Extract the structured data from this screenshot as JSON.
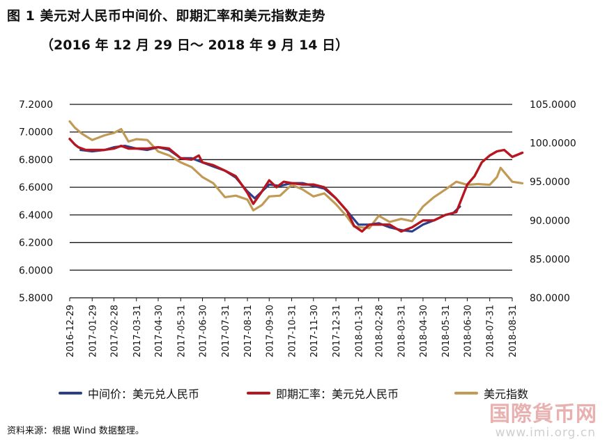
{
  "header": {
    "title": "图 1  美元对人民币中间价、即期汇率和美元指数走势",
    "subtitle": "（2016 年 12 月 29 日～ 2018 年 9 月 14 日）"
  },
  "legend": {
    "items": [
      {
        "label": "中间价：美元兑人民币",
        "color": "#2b3f8c"
      },
      {
        "label": "即期汇率：美元兑人民币",
        "color": "#b5161f"
      },
      {
        "label": "美元指数",
        "color": "#c19a56"
      }
    ]
  },
  "source": "资料来源：根据 Wind 数据整理。",
  "watermark": {
    "logo_text": "国際貨币网",
    "url": "www.imi.org.cn"
  },
  "chart_data": {
    "type": "line",
    "x_ticks": [
      "2016-12-29",
      "2017-01-29",
      "2017-02-28",
      "2017-03-31",
      "2017-04-30",
      "2017-05-31",
      "2017-06-30",
      "2017-07-31",
      "2017-08-31",
      "2017-09-30",
      "2017-10-31",
      "2017-11-30",
      "2017-12-31",
      "2018-01-31",
      "2018-02-28",
      "2018-03-31",
      "2018-04-30",
      "2018-05-31",
      "2018-06-30",
      "2018-07-31",
      "2018-08-31"
    ],
    "left_axis": {
      "min": 5.8,
      "max": 7.2,
      "ticks": [
        "7.2000",
        "7.0000",
        "6.8000",
        "6.6000",
        "6.4000",
        "6.2000",
        "6.0000",
        "5.8000"
      ]
    },
    "right_axis": {
      "min": 80,
      "max": 105,
      "ticks": [
        "105.0000",
        "100.0000",
        "95.0000",
        "90.0000",
        "85.0000",
        "80.0000"
      ]
    },
    "grid": "horizontal",
    "legend_position": "bottom",
    "series": [
      {
        "name": "中间价：美元兑人民币",
        "axis": "left",
        "color": "#2b3f8c",
        "points": [
          [
            "2017-01-13",
            6.87
          ],
          [
            "2017-01-29",
            6.86
          ],
          [
            "2017-02-15",
            6.87
          ],
          [
            "2017-02-28",
            6.89
          ],
          [
            "2017-03-15",
            6.9
          ],
          [
            "2017-03-31",
            6.88
          ],
          [
            "2017-04-15",
            6.87
          ],
          [
            "2017-04-30",
            6.89
          ],
          [
            "2017-05-15",
            6.87
          ],
          [
            "2017-05-31",
            6.81
          ],
          [
            "2017-06-15",
            6.81
          ],
          [
            "2017-06-30",
            6.78
          ],
          [
            "2017-07-15",
            6.75
          ],
          [
            "2017-07-31",
            6.72
          ],
          [
            "2017-08-15",
            6.67
          ],
          [
            "2017-08-31",
            6.57
          ],
          [
            "2017-09-10",
            6.52
          ],
          [
            "2017-09-20",
            6.57
          ],
          [
            "2017-09-30",
            6.62
          ],
          [
            "2017-10-15",
            6.61
          ],
          [
            "2017-10-31",
            6.63
          ],
          [
            "2017-11-15",
            6.63
          ],
          [
            "2017-11-30",
            6.61
          ],
          [
            "2017-12-15",
            6.59
          ],
          [
            "2017-12-31",
            6.52
          ],
          [
            "2018-01-15",
            6.43
          ],
          [
            "2018-01-31",
            6.33
          ],
          [
            "2018-02-15",
            6.33
          ],
          [
            "2018-02-28",
            6.34
          ],
          [
            "2018-03-15",
            6.31
          ],
          [
            "2018-03-31",
            6.29
          ],
          [
            "2018-04-15",
            6.28
          ],
          [
            "2018-04-30",
            6.33
          ],
          [
            "2018-05-15",
            6.36
          ],
          [
            "2018-05-31",
            6.4
          ],
          [
            "2018-06-10",
            6.41
          ],
          [
            "2018-06-20",
            6.46
          ]
        ]
      },
      {
        "name": "即期汇率：美元兑人民币",
        "axis": "left",
        "color": "#b5161f",
        "points": [
          [
            "2016-12-29",
            6.95
          ],
          [
            "2017-01-05",
            6.91
          ],
          [
            "2017-01-10",
            6.89
          ],
          [
            "2017-01-20",
            6.87
          ],
          [
            "2017-01-29",
            6.87
          ],
          [
            "2017-02-15",
            6.87
          ],
          [
            "2017-02-28",
            6.88
          ],
          [
            "2017-03-10",
            6.9
          ],
          [
            "2017-03-20",
            6.88
          ],
          [
            "2017-03-31",
            6.88
          ],
          [
            "2017-04-15",
            6.88
          ],
          [
            "2017-04-30",
            6.89
          ],
          [
            "2017-05-15",
            6.88
          ],
          [
            "2017-05-31",
            6.81
          ],
          [
            "2017-06-15",
            6.8
          ],
          [
            "2017-06-25",
            6.83
          ],
          [
            "2017-06-30",
            6.78
          ],
          [
            "2017-07-15",
            6.76
          ],
          [
            "2017-07-31",
            6.72
          ],
          [
            "2017-08-15",
            6.68
          ],
          [
            "2017-08-31",
            6.56
          ],
          [
            "2017-09-08",
            6.48
          ],
          [
            "2017-09-20",
            6.57
          ],
          [
            "2017-09-30",
            6.65
          ],
          [
            "2017-10-10",
            6.6
          ],
          [
            "2017-10-20",
            6.64
          ],
          [
            "2017-10-31",
            6.63
          ],
          [
            "2017-11-15",
            6.62
          ],
          [
            "2017-11-30",
            6.62
          ],
          [
            "2017-12-15",
            6.6
          ],
          [
            "2017-12-31",
            6.52
          ],
          [
            "2018-01-15",
            6.43
          ],
          [
            "2018-01-25",
            6.32
          ],
          [
            "2018-02-05",
            6.28
          ],
          [
            "2018-02-15",
            6.33
          ],
          [
            "2018-02-28",
            6.33
          ],
          [
            "2018-03-15",
            6.33
          ],
          [
            "2018-03-31",
            6.28
          ],
          [
            "2018-04-15",
            6.31
          ],
          [
            "2018-04-30",
            6.36
          ],
          [
            "2018-05-15",
            6.36
          ],
          [
            "2018-05-31",
            6.4
          ],
          [
            "2018-06-15",
            6.42
          ],
          [
            "2018-06-30",
            6.62
          ],
          [
            "2018-07-10",
            6.68
          ],
          [
            "2018-07-20",
            6.78
          ],
          [
            "2018-07-31",
            6.83
          ],
          [
            "2018-08-10",
            6.86
          ],
          [
            "2018-08-20",
            6.87
          ],
          [
            "2018-08-31",
            6.82
          ],
          [
            "2018-09-14",
            6.85
          ]
        ]
      },
      {
        "name": "美元指数",
        "axis": "right",
        "color": "#c19a56",
        "points": [
          [
            "2016-12-29",
            102.8
          ],
          [
            "2017-01-05",
            102.0
          ],
          [
            "2017-01-15",
            101.2
          ],
          [
            "2017-01-29",
            100.4
          ],
          [
            "2017-02-15",
            101.0
          ],
          [
            "2017-02-28",
            101.3
          ],
          [
            "2017-03-10",
            101.8
          ],
          [
            "2017-03-20",
            100.2
          ],
          [
            "2017-03-31",
            100.5
          ],
          [
            "2017-04-15",
            100.4
          ],
          [
            "2017-04-30",
            98.9
          ],
          [
            "2017-05-15",
            98.4
          ],
          [
            "2017-05-31",
            97.5
          ],
          [
            "2017-06-15",
            96.9
          ],
          [
            "2017-06-30",
            95.6
          ],
          [
            "2017-07-15",
            94.8
          ],
          [
            "2017-07-31",
            93.0
          ],
          [
            "2017-08-15",
            93.2
          ],
          [
            "2017-08-31",
            92.7
          ],
          [
            "2017-09-08",
            91.3
          ],
          [
            "2017-09-20",
            92.0
          ],
          [
            "2017-09-30",
            93.1
          ],
          [
            "2017-10-15",
            93.2
          ],
          [
            "2017-10-31",
            94.6
          ],
          [
            "2017-11-15",
            94.0
          ],
          [
            "2017-11-30",
            93.1
          ],
          [
            "2017-12-15",
            93.5
          ],
          [
            "2017-12-31",
            92.1
          ],
          [
            "2018-01-15",
            90.5
          ],
          [
            "2018-01-25",
            89.2
          ],
          [
            "2018-02-15",
            89.0
          ],
          [
            "2018-02-28",
            90.6
          ],
          [
            "2018-03-15",
            89.8
          ],
          [
            "2018-03-31",
            90.2
          ],
          [
            "2018-04-15",
            89.9
          ],
          [
            "2018-04-30",
            91.8
          ],
          [
            "2018-05-15",
            93.0
          ],
          [
            "2018-05-31",
            94.0
          ],
          [
            "2018-06-15",
            95.0
          ],
          [
            "2018-06-30",
            94.6
          ],
          [
            "2018-07-15",
            94.7
          ],
          [
            "2018-07-31",
            94.6
          ],
          [
            "2018-08-10",
            95.6
          ],
          [
            "2018-08-15",
            96.8
          ],
          [
            "2018-08-31",
            95.0
          ],
          [
            "2018-09-14",
            94.8
          ]
        ]
      }
    ]
  }
}
